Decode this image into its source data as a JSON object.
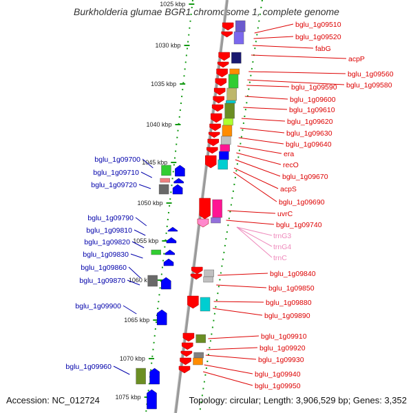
{
  "title": "Burkholderia glumae BGR1 chromosome 1, complete genome",
  "footer": {
    "accession": "Accession: NC_012724",
    "summary": "Topology: circular; Length: 3,906,529 bp; Genes: 3,352"
  },
  "colors": {
    "forward_label": "#dd0000",
    "reverse_label": "#0000aa",
    "trna_label": "#ee88bb",
    "backbone": "#999999",
    "tick": "#119911"
  },
  "scale_labels": [
    "1025 kbp",
    "1030 kbp",
    "1035 kbp",
    "1040 kbp",
    "1045 kbp",
    "1050 kbp",
    "1055 kbp",
    "1060 kbp",
    "1065 kbp",
    "1070 kbp",
    "1075 kbp"
  ],
  "labels_right": [
    "bglu_1g09510",
    "bglu_1g09520",
    "fabG",
    "acpP",
    "bglu_1g09560",
    "bglu_1g09580",
    "bglu_1g09590",
    "bglu_1g09600",
    "bglu_1g09610",
    "bglu_1g09620",
    "bglu_1g09630",
    "bglu_1g09640",
    "era",
    "recO",
    "bglu_1g09670",
    "acpS",
    "bglu_1g09690",
    "uvrC",
    "bglu_1g09740",
    "bglu_1g09840",
    "bglu_1g09850",
    "bglu_1g09880",
    "bglu_1g09890",
    "bglu_1g09910",
    "bglu_1g09920",
    "bglu_1g09930",
    "bglu_1g09940",
    "bglu_1g09950"
  ],
  "labels_trna": [
    "trnG3",
    "trnG4",
    "trnC"
  ],
  "labels_left": [
    "bglu_1g09700",
    "bglu_1g09710",
    "bglu_1g09720",
    "bglu_1g09790",
    "bglu_1g09810",
    "bglu_1g09820",
    "bglu_1g09830",
    "bglu_1g09860",
    "bglu_1g09870",
    "bglu_1g09900",
    "bglu_1g09960"
  ]
}
